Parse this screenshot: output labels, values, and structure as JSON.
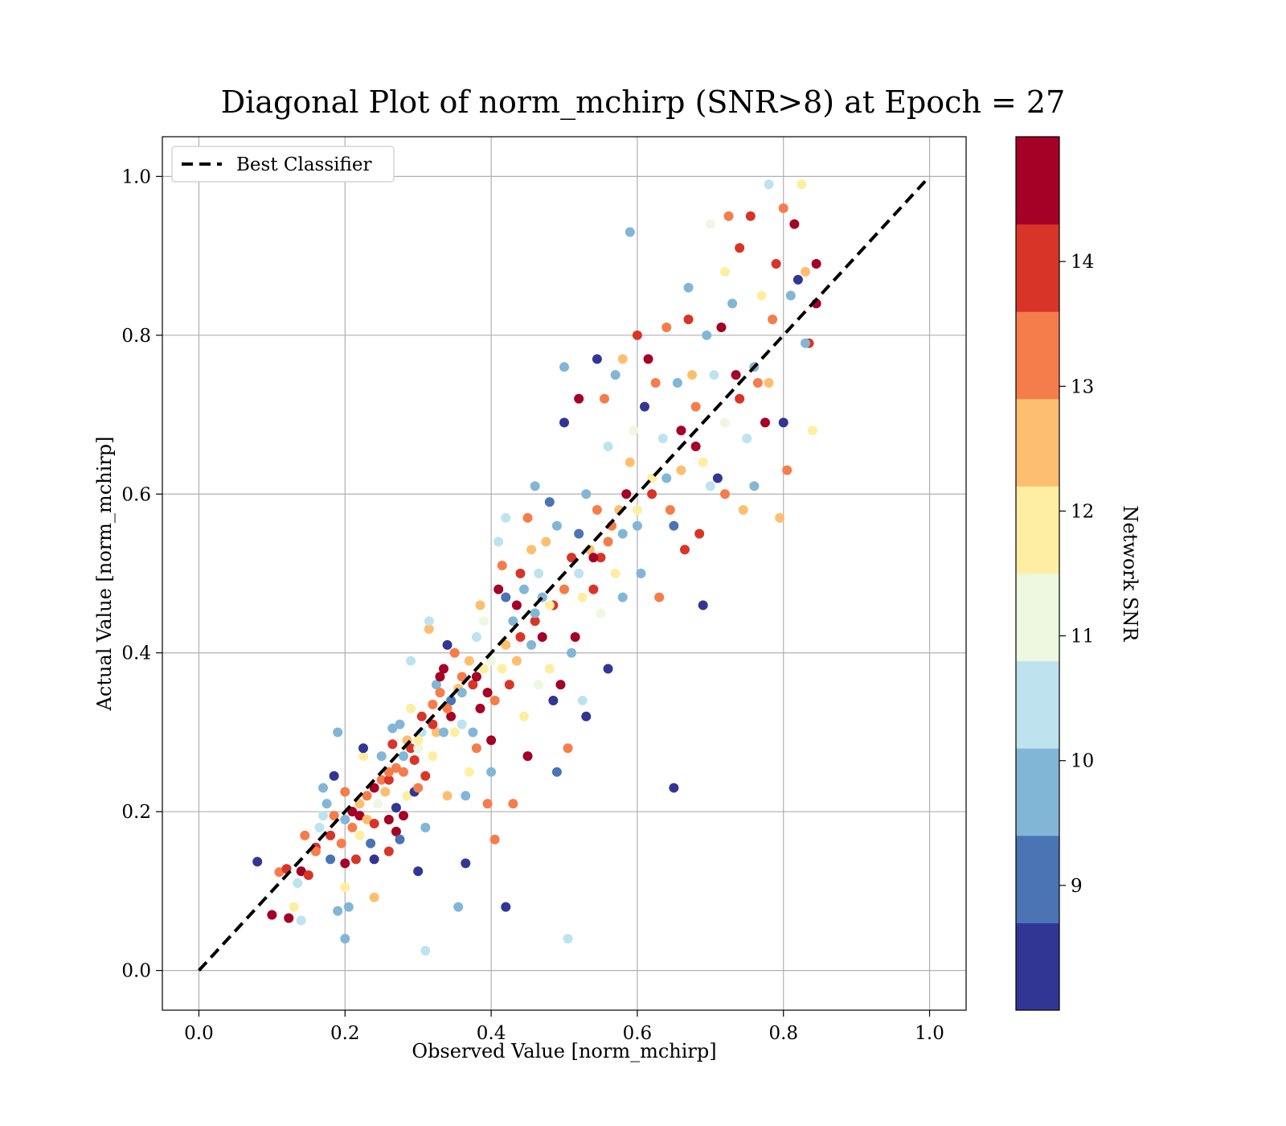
{
  "chart_data": {
    "type": "scatter",
    "title": "Diagonal Plot of norm_mchirp (SNR>8) at Epoch = 27",
    "xlabel": "Observed Value [norm_mchirp]",
    "ylabel": "Actual Value [norm_mchirp]",
    "xlim": [
      -0.05,
      1.05
    ],
    "ylim": [
      -0.05,
      1.05
    ],
    "xticks": [
      "0.0",
      "0.2",
      "0.4",
      "0.6",
      "0.8",
      "1.0"
    ],
    "yticks": [
      "0.0",
      "0.2",
      "0.4",
      "0.6",
      "0.8",
      "1.0"
    ],
    "grid": true,
    "legend": {
      "placement": "top-left",
      "entries": [
        "Best Classifier"
      ]
    },
    "reference_line": {
      "name": "Best Classifier",
      "style": "dashed",
      "color": "#000000",
      "x": [
        0,
        1
      ],
      "y": [
        0,
        1
      ]
    },
    "colorbar": {
      "label": "Network SNR",
      "range": [
        8,
        15
      ],
      "ticks": [
        "9",
        "10",
        "11",
        "12",
        "13",
        "14"
      ],
      "tick_values": [
        9,
        10,
        11,
        12,
        13,
        14
      ],
      "colors": [
        "#313695",
        "#4a74b4",
        "#82b6d6",
        "#bee3ee",
        "#eef7e0",
        "#feeea1",
        "#fdbf6f",
        "#f57d4b",
        "#d83528",
        "#a50026"
      ]
    },
    "points": [
      [
        0.08,
        0.137,
        8.3
      ],
      [
        0.1,
        0.07,
        14.6
      ],
      [
        0.11,
        0.124,
        13.0
      ],
      [
        0.12,
        0.128,
        14.0
      ],
      [
        0.123,
        0.066,
        14.6
      ],
      [
        0.13,
        0.08,
        12.0
      ],
      [
        0.135,
        0.11,
        10.4
      ],
      [
        0.14,
        0.125,
        14.8
      ],
      [
        0.14,
        0.063,
        10.4
      ],
      [
        0.145,
        0.17,
        13.5
      ],
      [
        0.15,
        0.12,
        14.0
      ],
      [
        0.155,
        0.15,
        11.0
      ],
      [
        0.16,
        0.155,
        14.2
      ],
      [
        0.165,
        0.18,
        10.4
      ],
      [
        0.17,
        0.195,
        10.6
      ],
      [
        0.17,
        0.23,
        9.7
      ],
      [
        0.175,
        0.21,
        9.9
      ],
      [
        0.18,
        0.14,
        9.2
      ],
      [
        0.185,
        0.195,
        13.6
      ],
      [
        0.185,
        0.245,
        8.3
      ],
      [
        0.19,
        0.075,
        9.4
      ],
      [
        0.19,
        0.3,
        9.9
      ],
      [
        0.195,
        0.16,
        12.9
      ],
      [
        0.2,
        0.105,
        12.0
      ],
      [
        0.2,
        0.225,
        13.6
      ],
      [
        0.2,
        0.135,
        14.6
      ],
      [
        0.2,
        0.04,
        9.4
      ],
      [
        0.205,
        0.08,
        9.7
      ],
      [
        0.21,
        0.18,
        13.6
      ],
      [
        0.21,
        0.2,
        14.4
      ],
      [
        0.215,
        0.14,
        14.2
      ],
      [
        0.22,
        0.17,
        12.0
      ],
      [
        0.22,
        0.195,
        14.6
      ],
      [
        0.225,
        0.27,
        12.0
      ],
      [
        0.225,
        0.28,
        8.3
      ],
      [
        0.23,
        0.22,
        13.0
      ],
      [
        0.23,
        0.19,
        12.5
      ],
      [
        0.235,
        0.16,
        9.0
      ],
      [
        0.24,
        0.14,
        8.3
      ],
      [
        0.24,
        0.185,
        13.8
      ],
      [
        0.24,
        0.092,
        12.7
      ],
      [
        0.245,
        0.21,
        11.3
      ],
      [
        0.25,
        0.24,
        13.0
      ],
      [
        0.25,
        0.27,
        9.9
      ],
      [
        0.255,
        0.225,
        12.5
      ],
      [
        0.26,
        0.15,
        14.0
      ],
      [
        0.26,
        0.19,
        14.6
      ],
      [
        0.26,
        0.24,
        14.2
      ],
      [
        0.265,
        0.285,
        14.0
      ],
      [
        0.265,
        0.305,
        9.7
      ],
      [
        0.27,
        0.175,
        14.8
      ],
      [
        0.27,
        0.205,
        8.3
      ],
      [
        0.27,
        0.255,
        13.6
      ],
      [
        0.275,
        0.165,
        9.2
      ],
      [
        0.275,
        0.31,
        9.9
      ],
      [
        0.28,
        0.195,
        14.6
      ],
      [
        0.28,
        0.25,
        13.0
      ],
      [
        0.285,
        0.22,
        12.0
      ],
      [
        0.285,
        0.29,
        12.7
      ],
      [
        0.29,
        0.28,
        13.8
      ],
      [
        0.29,
        0.33,
        12.0
      ],
      [
        0.29,
        0.39,
        10.4
      ],
      [
        0.295,
        0.225,
        8.3
      ],
      [
        0.295,
        0.265,
        14.2
      ],
      [
        0.3,
        0.23,
        13.6
      ],
      [
        0.3,
        0.28,
        11.0
      ],
      [
        0.3,
        0.125,
        8.3
      ],
      [
        0.305,
        0.32,
        14.2
      ],
      [
        0.305,
        0.3,
        10.2
      ],
      [
        0.31,
        0.18,
        9.4
      ],
      [
        0.31,
        0.025,
        10.4
      ],
      [
        0.31,
        0.245,
        13.8
      ],
      [
        0.315,
        0.43,
        12.7
      ],
      [
        0.315,
        0.44,
        10.4
      ],
      [
        0.32,
        0.27,
        12.0
      ],
      [
        0.32,
        0.335,
        13.6
      ],
      [
        0.325,
        0.3,
        12.5
      ],
      [
        0.325,
        0.36,
        9.9
      ],
      [
        0.33,
        0.37,
        14.6
      ],
      [
        0.33,
        0.35,
        13.0
      ],
      [
        0.335,
        0.3,
        9.7
      ],
      [
        0.335,
        0.38,
        14.4
      ],
      [
        0.34,
        0.41,
        8.3
      ],
      [
        0.34,
        0.22,
        12.7
      ],
      [
        0.345,
        0.32,
        14.6
      ],
      [
        0.345,
        0.34,
        9.2
      ],
      [
        0.35,
        0.4,
        13.6
      ],
      [
        0.35,
        0.3,
        12.0
      ],
      [
        0.355,
        0.08,
        9.9
      ],
      [
        0.355,
        0.355,
        12.5
      ],
      [
        0.36,
        0.31,
        10.4
      ],
      [
        0.36,
        0.37,
        13.0
      ],
      [
        0.365,
        0.135,
        8.3
      ],
      [
        0.365,
        0.22,
        9.4
      ],
      [
        0.37,
        0.39,
        12.7
      ],
      [
        0.37,
        0.25,
        12.0
      ],
      [
        0.375,
        0.36,
        13.8
      ],
      [
        0.375,
        0.3,
        9.9
      ],
      [
        0.38,
        0.42,
        10.4
      ],
      [
        0.38,
        0.28,
        13.6
      ],
      [
        0.385,
        0.46,
        12.7
      ],
      [
        0.385,
        0.33,
        14.6
      ],
      [
        0.39,
        0.38,
        12.0
      ],
      [
        0.39,
        0.44,
        11.0
      ],
      [
        0.395,
        0.21,
        13.0
      ],
      [
        0.395,
        0.35,
        14.4
      ],
      [
        0.4,
        0.29,
        14.8
      ],
      [
        0.4,
        0.25,
        9.4
      ],
      [
        0.405,
        0.165,
        13.5
      ],
      [
        0.405,
        0.34,
        13.6
      ],
      [
        0.41,
        0.48,
        14.6
      ],
      [
        0.41,
        0.54,
        10.4
      ],
      [
        0.415,
        0.38,
        12.0
      ],
      [
        0.415,
        0.51,
        13.0
      ],
      [
        0.42,
        0.08,
        8.3
      ],
      [
        0.42,
        0.47,
        9.2
      ],
      [
        0.42,
        0.57,
        10.4
      ],
      [
        0.425,
        0.36,
        13.8
      ],
      [
        0.43,
        0.44,
        9.9
      ],
      [
        0.43,
        0.21,
        13.0
      ],
      [
        0.435,
        0.46,
        14.4
      ],
      [
        0.435,
        0.39,
        12.5
      ],
      [
        0.44,
        0.42,
        11.3
      ],
      [
        0.44,
        0.5,
        14.2
      ],
      [
        0.445,
        0.48,
        9.4
      ],
      [
        0.445,
        0.32,
        12.0
      ],
      [
        0.45,
        0.57,
        13.6
      ],
      [
        0.45,
        0.27,
        14.8
      ],
      [
        0.455,
        0.41,
        9.9
      ],
      [
        0.455,
        0.53,
        12.5
      ],
      [
        0.46,
        0.61,
        9.4
      ],
      [
        0.46,
        0.44,
        14.2
      ],
      [
        0.465,
        0.5,
        10.4
      ],
      [
        0.465,
        0.36,
        11.3
      ],
      [
        0.47,
        0.42,
        14.8
      ],
      [
        0.47,
        0.47,
        9.7
      ],
      [
        0.475,
        0.54,
        12.7
      ],
      [
        0.48,
        0.38,
        12.0
      ],
      [
        0.48,
        0.59,
        9.2
      ],
      [
        0.485,
        0.46,
        13.8
      ],
      [
        0.485,
        0.34,
        8.3
      ],
      [
        0.49,
        0.56,
        9.4
      ],
      [
        0.49,
        0.25,
        9.0
      ],
      [
        0.495,
        0.36,
        14.6
      ],
      [
        0.5,
        0.48,
        12.5
      ],
      [
        0.5,
        0.69,
        8.3
      ],
      [
        0.5,
        0.76,
        9.9
      ],
      [
        0.505,
        0.28,
        13.0
      ],
      [
        0.505,
        0.04,
        10.4
      ],
      [
        0.51,
        0.52,
        14.2
      ],
      [
        0.51,
        0.4,
        9.7
      ],
      [
        0.515,
        0.42,
        14.4
      ],
      [
        0.52,
        0.55,
        9.2
      ],
      [
        0.52,
        0.72,
        14.6
      ],
      [
        0.525,
        0.34,
        10.4
      ],
      [
        0.525,
        0.47,
        12.0
      ],
      [
        0.53,
        0.32,
        8.3
      ],
      [
        0.53,
        0.6,
        9.9
      ],
      [
        0.535,
        0.53,
        12.5
      ],
      [
        0.54,
        0.48,
        14.0
      ],
      [
        0.545,
        0.77,
        8.3
      ],
      [
        0.545,
        0.58,
        13.6
      ],
      [
        0.55,
        0.45,
        11.3
      ],
      [
        0.55,
        0.52,
        14.2
      ],
      [
        0.555,
        0.72,
        13.0
      ],
      [
        0.56,
        0.38,
        8.3
      ],
      [
        0.56,
        0.66,
        10.4
      ],
      [
        0.565,
        0.56,
        13.6
      ],
      [
        0.57,
        0.75,
        9.4
      ],
      [
        0.57,
        0.5,
        12.0
      ],
      [
        0.575,
        0.58,
        12.5
      ],
      [
        0.58,
        0.77,
        12.5
      ],
      [
        0.58,
        0.47,
        9.4
      ],
      [
        0.585,
        0.6,
        14.8
      ],
      [
        0.59,
        0.93,
        9.7
      ],
      [
        0.59,
        0.64,
        12.7
      ],
      [
        0.595,
        0.68,
        11.3
      ],
      [
        0.6,
        0.8,
        14.2
      ],
      [
        0.6,
        0.56,
        9.9
      ],
      [
        0.605,
        0.5,
        9.4
      ],
      [
        0.61,
        0.71,
        8.3
      ],
      [
        0.615,
        0.77,
        14.4
      ],
      [
        0.62,
        0.62,
        12.0
      ],
      [
        0.625,
        0.74,
        13.6
      ],
      [
        0.63,
        0.47,
        13.6
      ],
      [
        0.635,
        0.67,
        10.4
      ],
      [
        0.64,
        0.81,
        13.0
      ],
      [
        0.645,
        0.58,
        13.6
      ],
      [
        0.65,
        0.23,
        8.3
      ],
      [
        0.65,
        0.56,
        9.2
      ],
      [
        0.655,
        0.74,
        9.7
      ],
      [
        0.66,
        0.68,
        14.4
      ],
      [
        0.665,
        0.53,
        14.2
      ],
      [
        0.67,
        0.86,
        9.4
      ],
      [
        0.67,
        0.82,
        14.0
      ],
      [
        0.675,
        0.75,
        12.5
      ],
      [
        0.68,
        0.71,
        13.0
      ],
      [
        0.685,
        0.55,
        14.2
      ],
      [
        0.69,
        0.46,
        8.3
      ],
      [
        0.69,
        0.64,
        12.0
      ],
      [
        0.695,
        0.8,
        9.4
      ],
      [
        0.7,
        0.94,
        11.3
      ],
      [
        0.7,
        0.61,
        10.4
      ],
      [
        0.705,
        0.75,
        10.4
      ],
      [
        0.71,
        0.62,
        8.3
      ],
      [
        0.715,
        0.81,
        14.6
      ],
      [
        0.72,
        0.88,
        12.0
      ],
      [
        0.72,
        0.6,
        13.5
      ],
      [
        0.725,
        0.95,
        13.6
      ],
      [
        0.73,
        0.84,
        9.4
      ],
      [
        0.735,
        0.75,
        14.8
      ],
      [
        0.74,
        0.91,
        14.2
      ],
      [
        0.745,
        0.58,
        12.5
      ],
      [
        0.75,
        0.67,
        10.4
      ],
      [
        0.755,
        0.95,
        14.2
      ],
      [
        0.76,
        0.61,
        9.4
      ],
      [
        0.765,
        0.74,
        13.6
      ],
      [
        0.77,
        0.85,
        12.0
      ],
      [
        0.775,
        0.69,
        14.6
      ],
      [
        0.78,
        0.99,
        10.4
      ],
      [
        0.785,
        0.82,
        13.6
      ],
      [
        0.79,
        0.89,
        14.2
      ],
      [
        0.795,
        0.57,
        12.5
      ],
      [
        0.8,
        0.96,
        13.5
      ],
      [
        0.8,
        0.69,
        8.3
      ],
      [
        0.805,
        0.63,
        13.6
      ],
      [
        0.81,
        0.85,
        9.7
      ],
      [
        0.815,
        0.94,
        14.6
      ],
      [
        0.82,
        0.87,
        8.3
      ],
      [
        0.825,
        0.99,
        12.0
      ],
      [
        0.83,
        0.88,
        12.5
      ],
      [
        0.835,
        0.79,
        14.0
      ],
      [
        0.84,
        0.68,
        12.0
      ],
      [
        0.845,
        0.89,
        14.8
      ],
      [
        0.845,
        0.84,
        14.6
      ],
      [
        0.83,
        0.79,
        9.4
      ],
      [
        0.78,
        0.74,
        12.7
      ],
      [
        0.76,
        0.76,
        9.9
      ],
      [
        0.74,
        0.72,
        14.0
      ],
      [
        0.72,
        0.69,
        11.3
      ],
      [
        0.68,
        0.66,
        14.6
      ],
      [
        0.66,
        0.63,
        12.5
      ],
      [
        0.64,
        0.62,
        9.9
      ],
      [
        0.62,
        0.6,
        14.0
      ],
      [
        0.6,
        0.58,
        12.0
      ],
      [
        0.58,
        0.55,
        9.4
      ],
      [
        0.56,
        0.54,
        13.0
      ],
      [
        0.54,
        0.52,
        14.8
      ],
      [
        0.52,
        0.5,
        10.4
      ],
      [
        0.5,
        0.48,
        13.6
      ],
      [
        0.48,
        0.46,
        12.0
      ],
      [
        0.46,
        0.45,
        9.7
      ],
      [
        0.44,
        0.42,
        14.2
      ],
      [
        0.42,
        0.41,
        12.5
      ],
      [
        0.4,
        0.39,
        11.0
      ],
      [
        0.38,
        0.37,
        14.6
      ],
      [
        0.36,
        0.35,
        9.4
      ],
      [
        0.34,
        0.33,
        13.0
      ],
      [
        0.32,
        0.31,
        14.0
      ],
      [
        0.3,
        0.29,
        12.0
      ],
      [
        0.28,
        0.27,
        9.9
      ],
      [
        0.26,
        0.25,
        13.6
      ],
      [
        0.24,
        0.23,
        14.6
      ],
      [
        0.22,
        0.21,
        12.5
      ],
      [
        0.2,
        0.19,
        9.4
      ],
      [
        0.18,
        0.17,
        14.2
      ],
      [
        0.16,
        0.15,
        13.0
      ]
    ]
  }
}
